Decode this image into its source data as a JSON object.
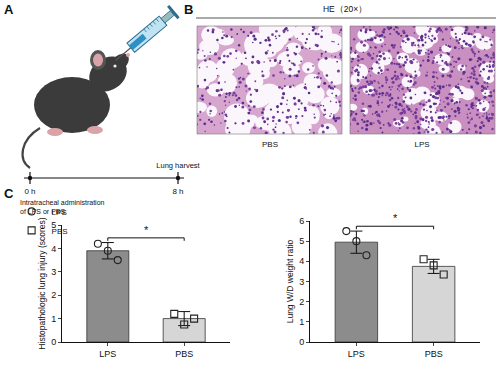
{
  "panels": {
    "A": {
      "label": "A",
      "timeline": {
        "start": "0 h",
        "start_note": [
          "Intratracheal administration",
          "of LPS or PBS"
        ],
        "end": "8 h",
        "end_note": "Lung harvest"
      }
    },
    "B": {
      "label": "B",
      "title": "HE（20×）",
      "images": [
        "PBS",
        "LPS"
      ]
    },
    "C": {
      "label": "C"
    }
  },
  "chart_data": [
    {
      "type": "bar",
      "ylabel": "Histopathologic lung injury (scores)",
      "categories": [
        "LPS",
        "PBS"
      ],
      "series": [
        {
          "name": "LPS",
          "color": "#8c8c8c",
          "marker": "circle",
          "values": [
            3.9,
            null
          ],
          "errors": [
            0.35,
            null
          ],
          "points": [
            [
              4.2,
              3.9,
              3.5
            ],
            null
          ]
        },
        {
          "name": "PBS",
          "color": "#d6d6d6",
          "marker": "square",
          "values": [
            null,
            1.0
          ],
          "errors": [
            null,
            0.3
          ],
          "points": [
            null,
            [
              1.2,
              0.75,
              1.0
            ]
          ]
        }
      ],
      "ylim": [
        0,
        5
      ],
      "yticks": [
        0,
        1,
        2,
        3,
        4,
        5
      ],
      "legend": "top left",
      "significance": "*"
    },
    {
      "type": "bar",
      "ylabel": "Lung W/D weight ratio",
      "categories": [
        "LPS",
        "PBS"
      ],
      "series": [
        {
          "name": "LPS",
          "color": "#8c8c8c",
          "marker": "circle",
          "values": [
            4.95,
            null
          ],
          "errors": [
            0.55,
            null
          ],
          "points": [
            [
              5.5,
              5.0,
              4.3
            ],
            null
          ]
        },
        {
          "name": "PBS",
          "color": "#d6d6d6",
          "marker": "square",
          "values": [
            null,
            3.75
          ],
          "errors": [
            null,
            0.35
          ],
          "points": [
            null,
            [
              4.1,
              3.8,
              3.35
            ]
          ]
        }
      ],
      "ylim": [
        0,
        6
      ],
      "yticks": [
        0,
        1,
        2,
        3,
        4,
        5,
        6
      ],
      "significance": "*"
    }
  ]
}
